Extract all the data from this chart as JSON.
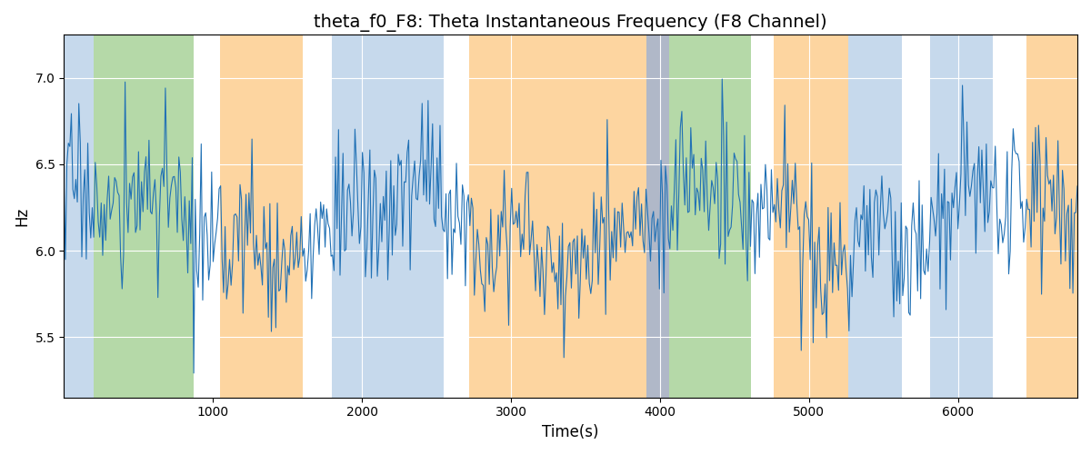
{
  "title": "theta_f0_F8: Theta Instantaneous Frequency (F8 Channel)",
  "xlabel": "Time(s)",
  "ylabel": "Hz",
  "ylim": [
    5.15,
    7.25
  ],
  "xlim": [
    0,
    6800
  ],
  "grid": true,
  "line_color": "#2171b5",
  "line_width": 0.8,
  "bg_regions": [
    {
      "start": 0,
      "end": 200,
      "color": "#c6d9ec"
    },
    {
      "start": 200,
      "end": 870,
      "color": "#b5d9a8"
    },
    {
      "start": 870,
      "end": 1050,
      "color": "#ffffff"
    },
    {
      "start": 1050,
      "end": 1600,
      "color": "#fdd5a0"
    },
    {
      "start": 1600,
      "end": 1800,
      "color": "#ffffff"
    },
    {
      "start": 1800,
      "end": 2550,
      "color": "#c6d9ec"
    },
    {
      "start": 2550,
      "end": 2720,
      "color": "#ffffff"
    },
    {
      "start": 2720,
      "end": 3910,
      "color": "#fdd5a0"
    },
    {
      "start": 3910,
      "end": 4060,
      "color": "#b0b8c8"
    },
    {
      "start": 4060,
      "end": 4610,
      "color": "#b5d9a8"
    },
    {
      "start": 4610,
      "end": 4760,
      "color": "#ffffff"
    },
    {
      "start": 4760,
      "end": 5260,
      "color": "#fdd5a0"
    },
    {
      "start": 5260,
      "end": 5620,
      "color": "#c6d9ec"
    },
    {
      "start": 5620,
      "end": 5810,
      "color": "#ffffff"
    },
    {
      "start": 5810,
      "end": 6230,
      "color": "#c6d9ec"
    },
    {
      "start": 6230,
      "end": 6460,
      "color": "#ffffff"
    },
    {
      "start": 6460,
      "end": 6800,
      "color": "#fdd5a0"
    }
  ],
  "seed": 17,
  "n_points": 680,
  "base_freq": 6.15,
  "noise_std": 0.22,
  "title_fontsize": 14,
  "label_fontsize": 12,
  "xticks": [
    1000,
    2000,
    3000,
    4000,
    5000,
    6000
  ],
  "yticks": [
    5.5,
    6.0,
    6.5,
    7.0
  ]
}
